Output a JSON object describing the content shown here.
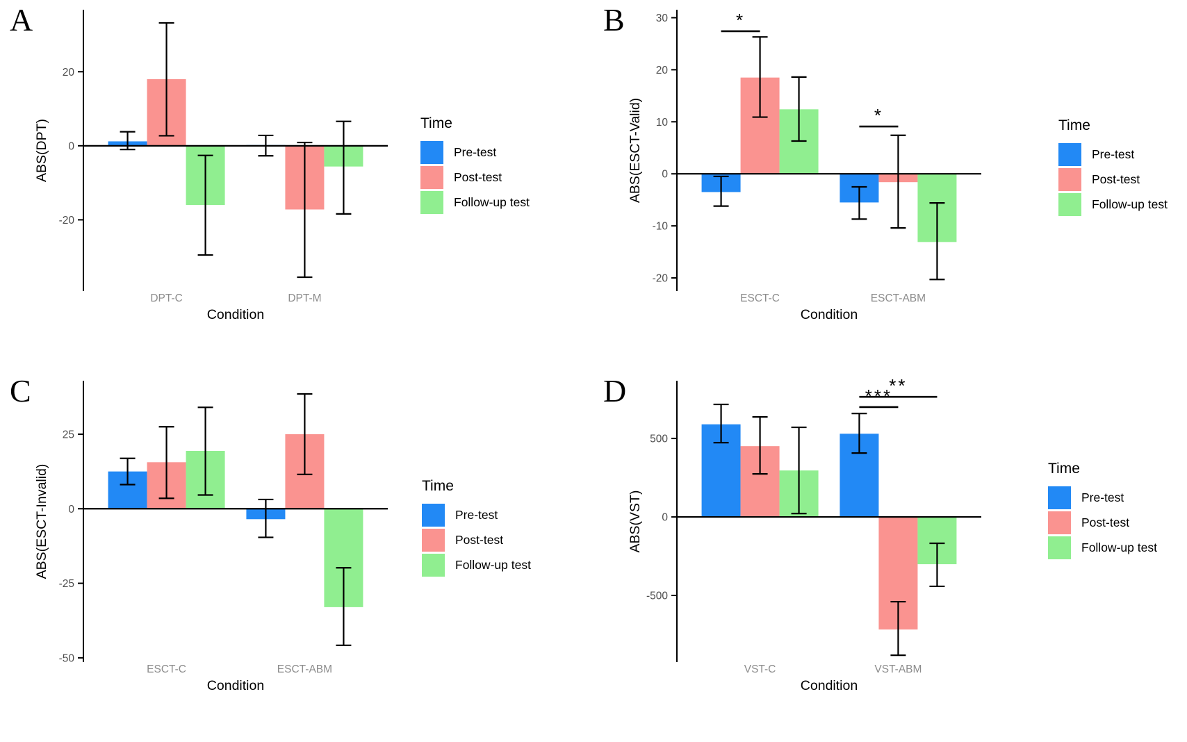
{
  "legend": {
    "title": "Time",
    "items": [
      {
        "label": "Pre-test",
        "color": "#2289F5"
      },
      {
        "label": "Post-test",
        "color": "#FA9390"
      },
      {
        "label": "Follow-up test",
        "color": "#90EE90"
      }
    ]
  },
  "colors": {
    "axis": "#000000",
    "tick_text": "#4d4d4d",
    "category_text": "#8c8c8c",
    "error_bar": "#000000"
  },
  "chart_data": [
    {
      "label": "A",
      "type": "bar",
      "title": "",
      "ylabel": "ABS(DPT)",
      "xlabel": "Condition",
      "categories": [
        "DPT-C",
        "DPT-M"
      ],
      "yticks": [
        20,
        0,
        -20
      ],
      "ylim": [
        -38.5,
        36
      ],
      "grid": false,
      "legend_position": "right",
      "series": [
        {
          "name": "Pre-test",
          "values": [
            1.2,
            0.2
          ],
          "err_lo": [
            -1.0,
            -2.7
          ],
          "err_hi": [
            3.8,
            2.8
          ]
        },
        {
          "name": "Post-test",
          "values": [
            18.0,
            -17.2
          ],
          "err_lo": [
            2.7,
            -35.5
          ],
          "err_hi": [
            33.2,
            0.9
          ]
        },
        {
          "name": "Follow-up test",
          "values": [
            -16.0,
            -5.6
          ],
          "err_lo": [
            -29.5,
            -18.4
          ],
          "err_hi": [
            -2.6,
            6.6
          ]
        }
      ],
      "significance": []
    },
    {
      "label": "B",
      "type": "bar",
      "title": "",
      "ylabel": "ABS(ESCT-Valid)",
      "xlabel": "Condition",
      "categories": [
        "ESCT-C",
        "ESCT-ABM"
      ],
      "yticks": [
        30,
        20,
        10,
        0,
        -10,
        -20
      ],
      "ylim": [
        -22,
        31
      ],
      "grid": false,
      "legend_position": "right",
      "series": [
        {
          "name": "Pre-test",
          "values": [
            -3.5,
            -5.5
          ],
          "err_lo": [
            -6.2,
            -8.7
          ],
          "err_hi": [
            -0.5,
            -2.5
          ]
        },
        {
          "name": "Post-test",
          "values": [
            18.5,
            -1.6
          ],
          "err_lo": [
            10.9,
            -10.4
          ],
          "err_hi": [
            26.3,
            7.4
          ]
        },
        {
          "name": "Follow-up test",
          "values": [
            12.4,
            -13.1
          ],
          "err_lo": [
            6.3,
            -20.3
          ],
          "err_hi": [
            18.6,
            -5.6
          ]
        }
      ],
      "significance": [
        {
          "category": 0,
          "from": 0,
          "to": 1,
          "y": 27.4,
          "label": "*"
        },
        {
          "category": 1,
          "from": 0,
          "to": 1,
          "y": 9.1,
          "label": "*"
        }
      ]
    },
    {
      "label": "C",
      "type": "bar",
      "title": "",
      "ylabel": "ABS(ESCT-Invalid)",
      "xlabel": "Condition",
      "categories": [
        "ESCT-C",
        "ESCT-ABM"
      ],
      "yticks": [
        25,
        0,
        -25,
        -50
      ],
      "ylim": [
        -50.5,
        42
      ],
      "grid": false,
      "legend_position": "right",
      "series": [
        {
          "name": "Pre-test",
          "values": [
            12.5,
            -3.5
          ],
          "err_lo": [
            8.1,
            -9.6
          ],
          "err_hi": [
            16.9,
            3.1
          ]
        },
        {
          "name": "Post-test",
          "values": [
            15.6,
            25.0
          ],
          "err_lo": [
            3.5,
            11.5
          ],
          "err_hi": [
            27.5,
            38.5
          ]
        },
        {
          "name": "Follow-up test",
          "values": [
            19.4,
            -33.0
          ],
          "err_lo": [
            4.6,
            -45.8
          ],
          "err_hi": [
            34.0,
            -19.8
          ]
        }
      ],
      "significance": []
    },
    {
      "label": "D",
      "type": "bar",
      "title": "",
      "ylabel": "ABS(VST)",
      "xlabel": "Condition",
      "categories": [
        "VST-C",
        "VST-ABM"
      ],
      "yticks": [
        500,
        0,
        -500
      ],
      "ylim": [
        -907,
        850
      ],
      "grid": false,
      "legend_position": "right",
      "series": [
        {
          "name": "Pre-test",
          "values": [
            590,
            530
          ],
          "err_lo": [
            473,
            407
          ],
          "err_hi": [
            717,
            659
          ]
        },
        {
          "name": "Post-test",
          "values": [
            451,
            -717
          ],
          "err_lo": [
            274,
            -881
          ],
          "err_hi": [
            637,
            -540
          ]
        },
        {
          "name": "Follow-up test",
          "values": [
            296,
            -301
          ],
          "err_lo": [
            22,
            -442
          ],
          "err_hi": [
            571,
            -168
          ]
        }
      ],
      "significance": [
        {
          "category": 1,
          "from": 0,
          "to": 2,
          "y": 765,
          "label": "**"
        },
        {
          "category": 1,
          "from": 0,
          "to": 1,
          "y": 700,
          "label": "***"
        }
      ]
    }
  ]
}
